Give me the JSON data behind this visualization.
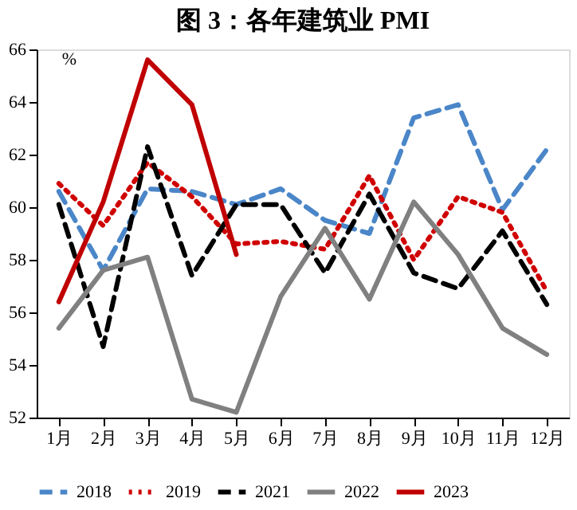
{
  "chart_data": {
    "type": "line",
    "title": "图 3：各年建筑业 PMI",
    "ylabel": "%",
    "categories": [
      "1月",
      "2月",
      "3月",
      "4月",
      "5月",
      "6月",
      "7月",
      "8月",
      "9月",
      "10月",
      "11月",
      "12月"
    ],
    "series": [
      {
        "name": "2018",
        "color": "#4a86c8",
        "line_style": "dashed",
        "values": [
          60.6,
          57.6,
          60.7,
          60.6,
          60.1,
          60.7,
          59.5,
          59.0,
          63.4,
          63.9,
          59.9,
          62.2
        ]
      },
      {
        "name": "2019",
        "color": "#d00000",
        "line_style": "dotted",
        "values": [
          60.9,
          59.3,
          61.7,
          60.4,
          58.6,
          58.7,
          58.4,
          61.2,
          58.0,
          60.4,
          59.8,
          56.8
        ]
      },
      {
        "name": "2021",
        "color": "#000000",
        "line_style": "dashed",
        "values": [
          60.1,
          54.7,
          62.3,
          57.4,
          60.1,
          60.1,
          57.5,
          60.5,
          57.5,
          56.9,
          59.1,
          56.3
        ]
      },
      {
        "name": "2022",
        "color": "#808080",
        "line_style": "solid",
        "values": [
          55.4,
          57.6,
          58.1,
          52.7,
          52.2,
          56.6,
          59.2,
          56.5,
          60.2,
          58.2,
          55.4,
          54.4
        ]
      },
      {
        "name": "2023",
        "color": "#c00000",
        "line_style": "solid",
        "values": [
          56.4,
          60.2,
          65.6,
          63.9,
          58.2,
          null,
          null,
          null,
          null,
          null,
          null,
          null
        ]
      }
    ],
    "ylim": [
      52,
      66
    ],
    "yticks": [
      52,
      54,
      56,
      58,
      60,
      62,
      64,
      66
    ],
    "grid": false,
    "legend": "bottom",
    "marker": "none"
  }
}
